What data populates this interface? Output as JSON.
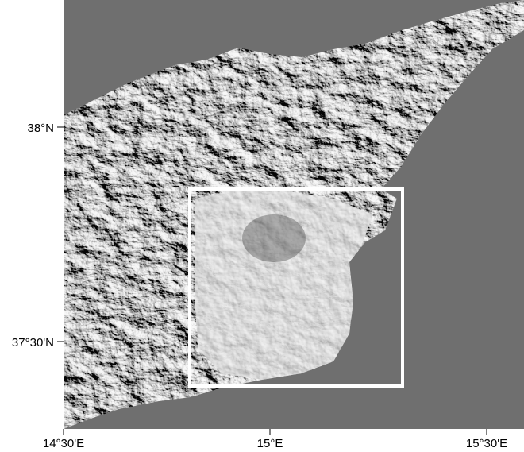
{
  "map": {
    "lat_labels": [
      "38°N",
      "37°30'N"
    ],
    "lon_labels": [
      "14°30'E",
      "15°E",
      "15°30'E"
    ]
  }
}
